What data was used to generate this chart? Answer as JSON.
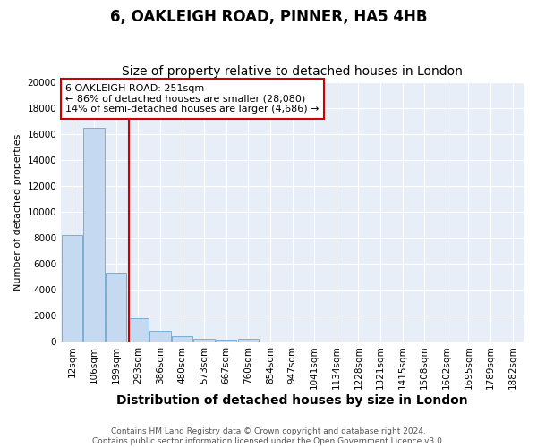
{
  "title": "6, OAKLEIGH ROAD, PINNER, HA5 4HB",
  "subtitle": "Size of property relative to detached houses in London",
  "xlabel": "Distribution of detached houses by size in London",
  "ylabel": "Number of detached properties",
  "bin_labels": [
    "12sqm",
    "106sqm",
    "199sqm",
    "293sqm",
    "386sqm",
    "480sqm",
    "573sqm",
    "667sqm",
    "760sqm",
    "854sqm",
    "947sqm",
    "1041sqm",
    "1134sqm",
    "1228sqm",
    "1321sqm",
    "1415sqm",
    "1508sqm",
    "1602sqm",
    "1695sqm",
    "1789sqm",
    "1882sqm"
  ],
  "bar_heights": [
    8200,
    16500,
    5300,
    1800,
    800,
    400,
    200,
    150,
    200,
    0,
    0,
    0,
    0,
    0,
    0,
    0,
    0,
    0,
    0,
    0,
    0
  ],
  "bar_color": "#c5d9f1",
  "bar_edge_color": "#7baed4",
  "vline_position": 2.6,
  "vline_color": "#cc0000",
  "annotation_line1": "6 OAKLEIGH ROAD: 251sqm",
  "annotation_line2": "← 86% of detached houses are smaller (28,080)",
  "annotation_line3": "14% of semi-detached houses are larger (4,686) →",
  "annotation_box_edge": "#cc0000",
  "footer_text": "Contains HM Land Registry data © Crown copyright and database right 2024.\nContains public sector information licensed under the Open Government Licence v3.0.",
  "ylim": [
    0,
    20000
  ],
  "yticks": [
    0,
    2000,
    4000,
    6000,
    8000,
    10000,
    12000,
    14000,
    16000,
    18000,
    20000
  ],
  "plot_bg_color": "#e8eef8",
  "title_fontsize": 12,
  "subtitle_fontsize": 10,
  "xlabel_fontsize": 10,
  "ylabel_fontsize": 8,
  "tick_fontsize": 7.5,
  "footer_fontsize": 6.5
}
